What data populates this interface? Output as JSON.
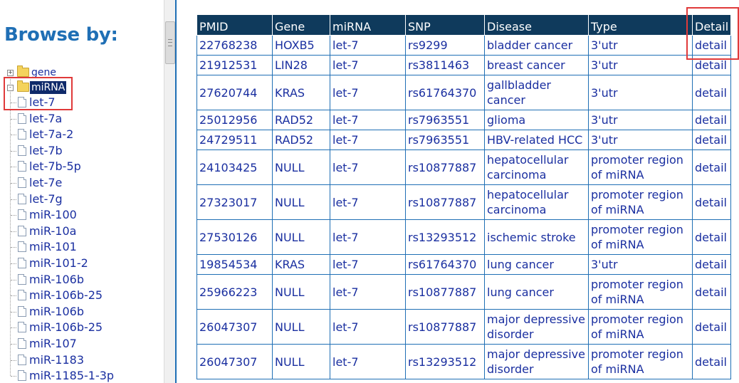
{
  "sidebar": {
    "title": "Browse by:",
    "folders": [
      {
        "label": "gene",
        "expander": "+"
      },
      {
        "label": "miRNA",
        "expander": "-"
      }
    ],
    "items": [
      "let-7",
      "let-7a",
      "let-7a-2",
      "let-7b",
      "let-7b-5p",
      "let-7e",
      "let-7g",
      "miR-100",
      "miR-10a",
      "miR-101",
      "miR-101-2",
      "miR-106b",
      "miR-106b-25",
      "miR-106b",
      "miR-106b-25",
      "miR-107",
      "miR-1183",
      "miR-1185-1-3p"
    ]
  },
  "table": {
    "headers": [
      "PMID",
      "Gene",
      "miRNA",
      "SNP",
      "Disease",
      "Type",
      "Detail"
    ],
    "rows": [
      {
        "pmid": "22768238",
        "gene": "HOXB5",
        "mirna": "let-7",
        "snp": "rs9299",
        "disease": "bladder cancer",
        "type": "3'utr",
        "detail": "detail"
      },
      {
        "pmid": "21912531",
        "gene": "LIN28",
        "mirna": "let-7",
        "snp": "rs3811463",
        "disease": "breast cancer",
        "type": "3'utr",
        "detail": "detail"
      },
      {
        "pmid": "27620744",
        "gene": "KRAS",
        "mirna": "let-7",
        "snp": "rs61764370",
        "disease": "gallbladder cancer",
        "type": "3'utr",
        "detail": "detail"
      },
      {
        "pmid": "25012956",
        "gene": "RAD52",
        "mirna": "let-7",
        "snp": "rs7963551",
        "disease": "glioma",
        "type": "3'utr",
        "detail": "detail"
      },
      {
        "pmid": "24729511",
        "gene": "RAD52",
        "mirna": "let-7",
        "snp": "rs7963551",
        "disease": "HBV-related HCC",
        "type": "3'utr",
        "detail": "detail"
      },
      {
        "pmid": "24103425",
        "gene": "NULL",
        "mirna": "let-7",
        "snp": "rs10877887",
        "disease": "hepatocellular carcinoma",
        "type": "promoter region of miRNA",
        "detail": "detail"
      },
      {
        "pmid": "27323017",
        "gene": "NULL",
        "mirna": "let-7",
        "snp": "rs10877887",
        "disease": "hepatocellular carcinoma",
        "type": "promoter region of miRNA",
        "detail": "detail"
      },
      {
        "pmid": "27530126",
        "gene": "NULL",
        "mirna": "let-7",
        "snp": "rs13293512",
        "disease": "ischemic stroke",
        "type": "promoter region of miRNA",
        "detail": "detail"
      },
      {
        "pmid": "19854534",
        "gene": "KRAS",
        "mirna": "let-7",
        "snp": "rs61764370",
        "disease": "lung cancer",
        "type": "3'utr",
        "detail": "detail"
      },
      {
        "pmid": "25966223",
        "gene": "NULL",
        "mirna": "let-7",
        "snp": "rs10877887",
        "disease": "lung cancer",
        "type": "promoter region of miRNA",
        "detail": "detail"
      },
      {
        "pmid": "26047307",
        "gene": "NULL",
        "mirna": "let-7",
        "snp": "rs10877887",
        "disease": "major depressive disorder",
        "type": "promoter region of miRNA",
        "detail": "detail"
      },
      {
        "pmid": "26047307",
        "gene": "NULL",
        "mirna": "let-7",
        "snp": "rs13293512",
        "disease": "major depressive disorder",
        "type": "promoter region of miRNA",
        "detail": "detail"
      }
    ]
  }
}
